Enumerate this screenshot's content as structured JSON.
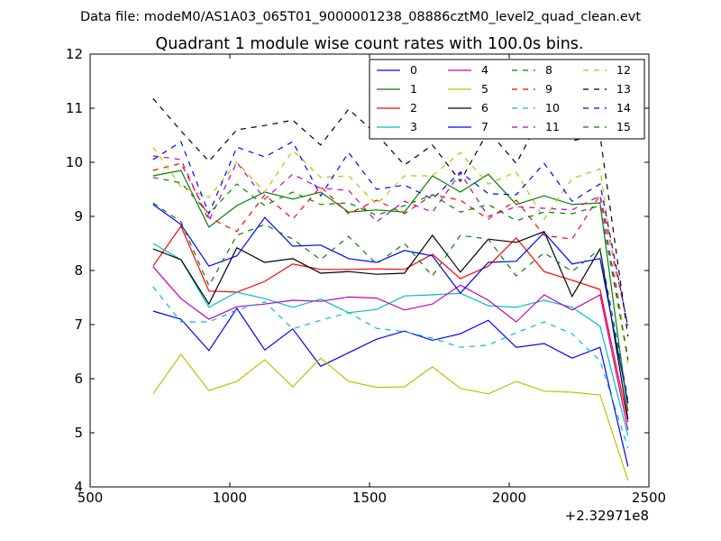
{
  "file_label": "Data file: modeM0/AS1A03_065T01_9000001238_08886cztM0_level2_quad_clean.evt",
  "chart_data": {
    "type": "line",
    "title": "Quadrant 1 module wise count rates with 100.0s bins.",
    "xlabel": "",
    "ylabel": "",
    "x_offset_label": "+2.32971e8",
    "xlim": [
      500,
      2500
    ],
    "ylim": [
      4,
      12
    ],
    "xticks": [
      500,
      1000,
      1500,
      2000,
      2500
    ],
    "xtick_labels": [
      "500",
      "1000",
      "1500",
      "2000",
      "2500"
    ],
    "yticks": [
      4,
      5,
      6,
      7,
      8,
      9,
      10,
      11,
      12
    ],
    "ytick_labels": [
      "4",
      "5",
      "6",
      "7",
      "8",
      "9",
      "10",
      "11",
      "12"
    ],
    "grid": false,
    "legend_position": "top-right",
    "legend_columns": 4,
    "x": [
      725,
      825,
      925,
      1025,
      1125,
      1225,
      1325,
      1425,
      1525,
      1625,
      1725,
      1825,
      1925,
      2025,
      2125,
      2225,
      2325,
      2425
    ],
    "series": [
      {
        "name": "0",
        "color": "#0000ff",
        "dash": "solid",
        "values": [
          7.25,
          7.1,
          6.52,
          7.3,
          6.53,
          6.92,
          6.23,
          6.48,
          6.73,
          6.88,
          6.71,
          6.83,
          7.08,
          6.58,
          6.65,
          6.38,
          6.58,
          4.38
        ]
      },
      {
        "name": "1",
        "color": "#008000",
        "dash": "solid",
        "values": [
          9.75,
          9.85,
          8.8,
          9.2,
          9.45,
          9.32,
          9.45,
          9.08,
          9.12,
          9.08,
          9.75,
          9.45,
          9.78,
          9.22,
          9.38,
          9.22,
          9.25,
          5.4
        ]
      },
      {
        "name": "2",
        "color": "#ff0000",
        "dash": "solid",
        "values": [
          8.08,
          8.82,
          7.62,
          7.6,
          7.8,
          8.12,
          8.02,
          8.02,
          8.03,
          8.02,
          8.3,
          7.85,
          8.08,
          8.6,
          7.98,
          7.82,
          7.65,
          5.2
        ]
      },
      {
        "name": "3",
        "color": "#00bfbf",
        "dash": "solid",
        "values": [
          8.5,
          8.2,
          7.32,
          7.6,
          7.48,
          7.32,
          7.47,
          7.22,
          7.28,
          7.53,
          7.55,
          7.58,
          7.35,
          7.32,
          7.45,
          7.32,
          6.97,
          4.95
        ]
      },
      {
        "name": "4",
        "color": "#bf00bf",
        "dash": "solid",
        "values": [
          8.07,
          7.48,
          7.1,
          7.33,
          7.38,
          7.45,
          7.43,
          7.51,
          7.49,
          7.27,
          7.38,
          7.73,
          7.45,
          7.05,
          7.55,
          7.27,
          7.55,
          5.05
        ]
      },
      {
        "name": "5",
        "color": "#bfbf00",
        "dash": "solid",
        "values": [
          5.72,
          6.45,
          5.78,
          5.95,
          6.35,
          5.85,
          6.38,
          5.95,
          5.84,
          5.85,
          6.22,
          5.82,
          5.72,
          5.95,
          5.77,
          5.75,
          5.7,
          4.12
        ]
      },
      {
        "name": "6",
        "color": "#000000",
        "dash": "solid",
        "values": [
          8.4,
          8.2,
          7.38,
          8.42,
          8.15,
          8.22,
          7.95,
          7.98,
          7.93,
          7.95,
          8.65,
          7.97,
          8.58,
          8.52,
          8.72,
          7.52,
          8.4,
          5.25
        ]
      },
      {
        "name": "7",
        "color": "#0000ff",
        "dash": "solid",
        "values": [
          9.22,
          8.85,
          8.08,
          8.27,
          8.98,
          8.45,
          8.47,
          8.22,
          8.15,
          8.37,
          8.27,
          7.58,
          8.15,
          8.17,
          8.7,
          8.12,
          8.22,
          5.55
        ]
      },
      {
        "name": "8",
        "color": "#008000",
        "dash": "dashed",
        "values": [
          9.25,
          8.9,
          7.72,
          8.65,
          8.85,
          8.58,
          8.2,
          8.63,
          8.12,
          8.5,
          7.9,
          8.65,
          8.58,
          7.9,
          8.33,
          7.98,
          8.4,
          5.62
        ]
      },
      {
        "name": "9",
        "color": "#ff0000",
        "dash": "dashed",
        "values": [
          9.85,
          9.98,
          8.98,
          8.72,
          9.4,
          8.95,
          9.55,
          9.05,
          9.3,
          9.05,
          9.4,
          9.3,
          8.95,
          9.3,
          8.65,
          8.58,
          9.4,
          6.98
        ]
      },
      {
        "name": "10",
        "color": "#00bfbf",
        "dash": "dashed",
        "values": [
          7.7,
          7.05,
          7.05,
          7.27,
          7.42,
          6.92,
          7.08,
          7.22,
          6.93,
          6.87,
          6.75,
          6.58,
          6.62,
          6.85,
          7.05,
          6.83,
          6.33,
          4.72
        ]
      },
      {
        "name": "11",
        "color": "#bf00bf",
        "dash": "dashed",
        "values": [
          10.12,
          10.05,
          8.92,
          10.0,
          9.32,
          9.78,
          9.52,
          9.48,
          8.9,
          9.28,
          9.08,
          9.8,
          9.0,
          9.18,
          9.15,
          9.12,
          9.38,
          6.38
        ]
      },
      {
        "name": "12",
        "color": "#bfbf00",
        "dash": "dashed",
        "values": [
          10.28,
          9.55,
          9.35,
          10.0,
          9.45,
          10.22,
          9.72,
          9.75,
          9.22,
          9.75,
          9.75,
          10.18,
          9.6,
          9.82,
          8.95,
          9.7,
          9.88,
          6.28
        ]
      },
      {
        "name": "13",
        "color": "#000000",
        "dash": "dashed",
        "values": [
          11.18,
          10.58,
          10.02,
          10.6,
          10.68,
          10.78,
          10.32,
          10.98,
          10.52,
          9.95,
          10.32,
          9.65,
          10.58,
          9.98,
          10.95,
          10.4,
          10.5,
          6.78
        ]
      },
      {
        "name": "14",
        "color": "#0000ff",
        "dash": "dashed",
        "values": [
          10.05,
          10.38,
          9.05,
          10.28,
          10.1,
          10.38,
          9.38,
          10.18,
          9.5,
          9.58,
          9.32,
          9.82,
          9.42,
          9.4,
          9.98,
          9.28,
          9.6,
          6.95
        ]
      },
      {
        "name": "15",
        "color": "#008000",
        "dash": "dashed",
        "values": [
          9.72,
          9.62,
          9.05,
          9.6,
          9.2,
          9.45,
          9.22,
          9.25,
          9.02,
          9.2,
          9.4,
          9.08,
          9.22,
          8.92,
          9.08,
          9.05,
          9.2,
          6.35
        ]
      }
    ]
  }
}
